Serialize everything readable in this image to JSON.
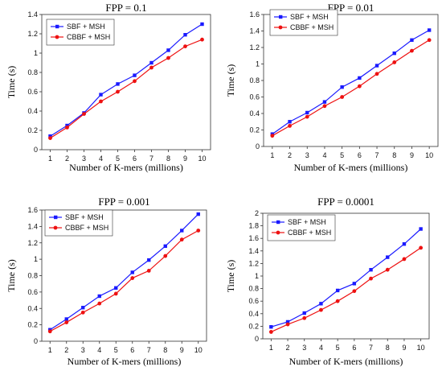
{
  "chart_data": [
    {
      "type": "line",
      "title": "FPP = 0.1",
      "xlabel": "Number of K-mers (millions)",
      "ylabel": "Time (s)",
      "x": [
        1,
        2,
        3,
        4,
        5,
        6,
        7,
        8,
        9,
        10
      ],
      "ylim": [
        0,
        1.4
      ],
      "yticks": [
        0,
        0.2,
        0.4,
        0.6,
        0.8,
        1.0,
        1.2,
        1.4
      ],
      "ytick_labels": [
        "0",
        "0.2",
        "0.4",
        "0.6",
        "0.8",
        "1",
        "1.2",
        "1.4"
      ],
      "series": [
        {
          "name": "SBF + MSH",
          "color": "#1a1aff",
          "marker": "square",
          "values": [
            0.14,
            0.25,
            0.38,
            0.57,
            0.68,
            0.77,
            0.9,
            1.03,
            1.19,
            1.3
          ]
        },
        {
          "name": "CBBF + MSH",
          "color": "#ee1111",
          "marker": "circle",
          "values": [
            0.12,
            0.23,
            0.37,
            0.5,
            0.6,
            0.71,
            0.85,
            0.95,
            1.07,
            1.14
          ]
        }
      ]
    },
    {
      "type": "line",
      "title": "FPP = 0.01",
      "xlabel": "Number of K-mers (millions)",
      "ylabel": "Time (s)",
      "x": [
        1,
        2,
        3,
        4,
        5,
        6,
        7,
        8,
        9,
        10
      ],
      "ylim": [
        0,
        1.6
      ],
      "yticks": [
        0,
        0.2,
        0.4,
        0.6,
        0.8,
        1.0,
        1.2,
        1.4,
        1.6
      ],
      "ytick_labels": [
        "0",
        "0.2",
        "0.4",
        "0.6",
        "0.8",
        "1",
        "1.2",
        "1.4",
        "1.6"
      ],
      "series": [
        {
          "name": "SBF + MSH",
          "color": "#1a1aff",
          "marker": "square",
          "values": [
            0.15,
            0.3,
            0.41,
            0.54,
            0.72,
            0.83,
            0.98,
            1.13,
            1.29,
            1.41
          ]
        },
        {
          "name": "CBBF + MSH",
          "color": "#ee1111",
          "marker": "circle",
          "values": [
            0.13,
            0.25,
            0.36,
            0.49,
            0.6,
            0.73,
            0.88,
            1.02,
            1.16,
            1.29
          ]
        }
      ]
    },
    {
      "type": "line",
      "title": "FPP = 0.001",
      "xlabel": "Number of K-mers (millions)",
      "ylabel": "Time (s)",
      "x": [
        1,
        2,
        3,
        4,
        5,
        6,
        7,
        8,
        9,
        10
      ],
      "ylim": [
        0,
        1.6
      ],
      "yticks": [
        0,
        0.2,
        0.4,
        0.6,
        0.8,
        1.0,
        1.2,
        1.4,
        1.6
      ],
      "ytick_labels": [
        "0",
        "0.2",
        "0.4",
        "0.6",
        "0.8",
        "1",
        "1.2",
        "1.4",
        "1.6"
      ],
      "series": [
        {
          "name": "SBF + MSH",
          "color": "#1a1aff",
          "marker": "square",
          "values": [
            0.14,
            0.27,
            0.41,
            0.55,
            0.65,
            0.84,
            0.99,
            1.16,
            1.35,
            1.55
          ]
        },
        {
          "name": "CBBF + MSH",
          "color": "#ee1111",
          "marker": "circle",
          "values": [
            0.12,
            0.23,
            0.35,
            0.46,
            0.58,
            0.77,
            0.86,
            1.04,
            1.24,
            1.35
          ]
        }
      ]
    },
    {
      "type": "line",
      "title": "FPP = 0.0001",
      "xlabel": "Number of K-mers (millions)",
      "ylabel": "Time (s)",
      "x": [
        1,
        2,
        3,
        4,
        5,
        6,
        7,
        8,
        9,
        10
      ],
      "ylim": [
        0,
        2.0
      ],
      "yticks": [
        0,
        0.2,
        0.4,
        0.6,
        0.8,
        1.0,
        1.2,
        1.4,
        1.6,
        1.8,
        2.0
      ],
      "ytick_labels": [
        "0",
        "0.2",
        "0.4",
        "0.6",
        "0.8",
        "1",
        "1.2",
        "1.4",
        "1.6",
        "1.8",
        "2"
      ],
      "series": [
        {
          "name": "SBF + MSH",
          "color": "#1a1aff",
          "marker": "square",
          "values": [
            0.19,
            0.27,
            0.41,
            0.56,
            0.77,
            0.88,
            1.1,
            1.3,
            1.51,
            1.75
          ]
        },
        {
          "name": "CBBF + MSH",
          "color": "#ee1111",
          "marker": "circle",
          "values": [
            0.11,
            0.23,
            0.33,
            0.46,
            0.6,
            0.76,
            0.96,
            1.1,
            1.27,
            1.45
          ]
        }
      ]
    }
  ]
}
